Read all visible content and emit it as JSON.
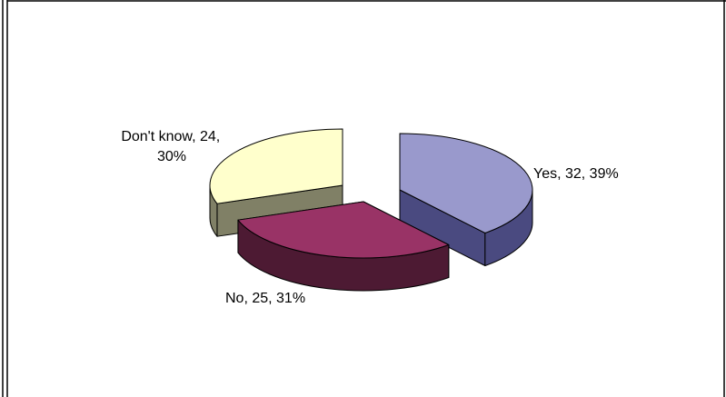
{
  "chart_data": {
    "type": "pie",
    "style": "3d-exploded",
    "title": "",
    "legend": "none",
    "slices": [
      {
        "name": "Yes",
        "value": 32,
        "percent": 39,
        "label": "Yes, 32, 39%",
        "color": "#9999cc",
        "side_color": "#4a4a80"
      },
      {
        "name": "No",
        "value": 25,
        "percent": 31,
        "label": "No, 25, 31%",
        "color": "#993366",
        "side_color": "#4d1a33"
      },
      {
        "name": "Don't know",
        "value": 24,
        "percent": 30,
        "label_lines": [
          "Don't know, 24,",
          "30%"
        ],
        "color": "#ffffcc",
        "side_color": "#808066"
      }
    ]
  }
}
